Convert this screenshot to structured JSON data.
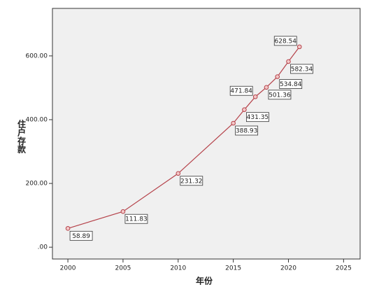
{
  "chart_data": {
    "type": "line",
    "x_label": "年份",
    "y_label": "住户存款",
    "x": [
      2000,
      2005,
      2010,
      2015,
      2016,
      2017,
      2018,
      2019,
      2020,
      2021
    ],
    "series": [
      {
        "color": "#b5424a",
        "values": [
          58.89,
          111.83,
          231.32,
          388.93,
          431.35,
          471.84,
          501.36,
          534.84,
          582.34,
          628.54
        ]
      }
    ],
    "xlim": [
      1998.6,
      2026.5
    ],
    "xticks": [
      2000,
      2005,
      2010,
      2015,
      2020,
      2025
    ],
    "ylim": [
      -37,
      749
    ],
    "yticks": [
      {
        "value": 0,
        "label": ".00"
      },
      {
        "value": 200,
        "label": "200.00"
      },
      {
        "value": 400,
        "label": "400.00"
      },
      {
        "value": 600,
        "label": "600.00"
      }
    ],
    "grid": false
  }
}
